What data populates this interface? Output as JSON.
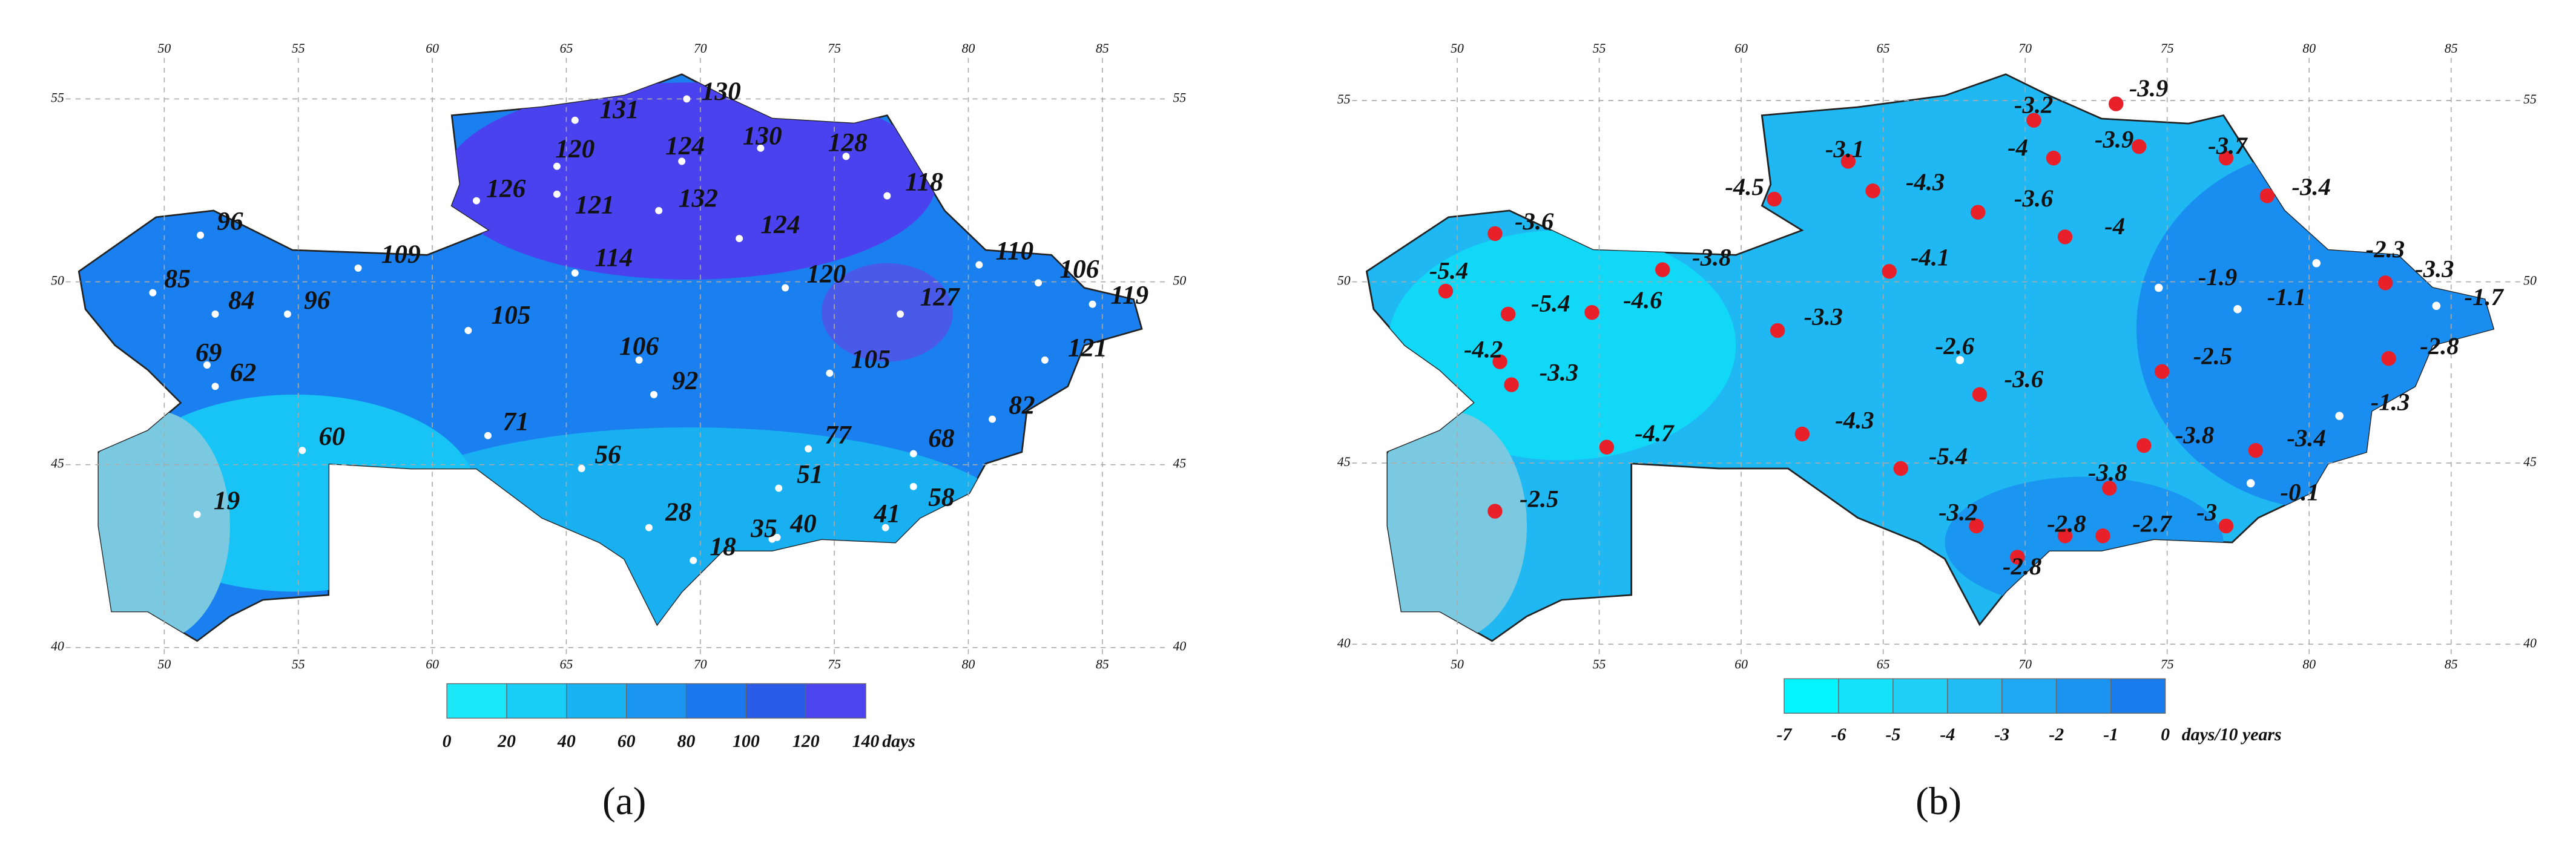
{
  "panels": [
    {
      "label": "(a)",
      "lon_ticks": [
        50,
        55,
        60,
        65,
        70,
        75,
        80,
        85
      ],
      "lat_ticks": [
        55,
        50,
        45,
        40
      ],
      "stations": [
        131,
        130,
        120,
        124,
        130,
        128,
        126,
        121,
        132,
        118,
        124,
        96,
        114,
        109,
        85,
        84,
        96,
        120,
        110,
        106,
        119,
        127,
        105,
        106,
        69,
        62,
        92,
        105,
        121,
        82,
        71,
        77,
        68,
        60,
        56,
        51,
        58,
        19,
        28,
        35,
        40,
        41,
        18
      ],
      "legend": {
        "ticks": [
          0,
          20,
          40,
          60,
          80,
          100,
          120,
          140
        ],
        "unit": "days",
        "colors": [
          "#1ae8f8",
          "#18cdf6",
          "#19b2f2",
          "#1a95f0",
          "#1c78ef",
          "#2a5cea",
          "#4c44ee"
        ]
      }
    },
    {
      "label": "(b)",
      "lon_ticks": [
        50,
        55,
        60,
        65,
        70,
        75,
        80,
        85
      ],
      "lat_ticks": [
        55,
        50,
        45,
        40
      ],
      "stations": [
        -3.2,
        -3.9,
        -3.1,
        -4.0,
        -3.9,
        -3.7,
        -4.5,
        -4.3,
        -3.6,
        -3.4,
        -4.0,
        -3.6,
        -3.8,
        -4.1,
        -1.9,
        -2.3,
        -3.3,
        -1.7,
        -1.1,
        -5.4,
        -5.4,
        -4.6,
        -3.3,
        -2.6,
        -4.2,
        -3.3,
        -3.6,
        -2.5,
        -2.8,
        -1.3,
        -4.3,
        -4.7,
        -3.8,
        -3.4,
        -5.4,
        -3.8,
        -0.1,
        -3.0,
        -2.5,
        -3.2,
        -2.8,
        -2.7,
        -2.8
      ],
      "legend": {
        "ticks": [
          -7,
          -6,
          -5,
          -4,
          -3,
          -2,
          -1,
          0
        ],
        "unit": "days/10 years",
        "colors": [
          "#04f4fe",
          "#14e2fa",
          "#1fcff6",
          "#22bcf5",
          "#1fa8f3",
          "#1b93f1",
          "#187cee"
        ]
      }
    }
  ]
}
